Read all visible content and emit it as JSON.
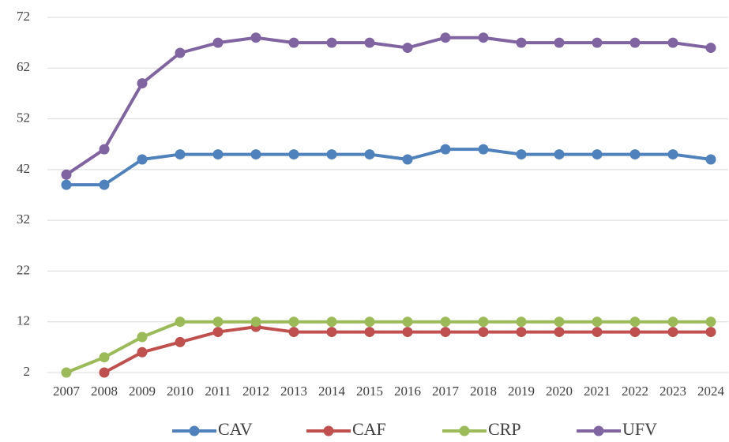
{
  "chart_data": {
    "type": "line",
    "categories": [
      "2007",
      "2008",
      "2009",
      "2010",
      "2011",
      "2012",
      "2013",
      "2014",
      "2015",
      "2016",
      "2017",
      "2018",
      "2019",
      "2020",
      "2021",
      "2022",
      "2023",
      "2024"
    ],
    "series": [
      {
        "name": "CAV",
        "color": "#4f81bd",
        "values": [
          39,
          39,
          44,
          45,
          45,
          45,
          45,
          45,
          45,
          44,
          46,
          46,
          45,
          45,
          45,
          45,
          45,
          44
        ]
      },
      {
        "name": "CAF",
        "color": "#c0504d",
        "values": [
          null,
          2,
          6,
          8,
          10,
          11,
          10,
          10,
          10,
          10,
          10,
          10,
          10,
          10,
          10,
          10,
          10,
          10
        ]
      },
      {
        "name": "CRP",
        "color": "#9bbb59",
        "values": [
          2,
          5,
          9,
          12,
          12,
          12,
          12,
          12,
          12,
          12,
          12,
          12,
          12,
          12,
          12,
          12,
          12,
          12
        ]
      },
      {
        "name": "UFV",
        "color": "#8064a2",
        "values": [
          41,
          46,
          59,
          65,
          67,
          68,
          67,
          67,
          67,
          66,
          68,
          68,
          67,
          67,
          67,
          67,
          67,
          66
        ]
      }
    ],
    "ylim": [
      2,
      72
    ],
    "yticks": [
      2,
      12,
      22,
      32,
      42,
      52,
      62,
      72
    ],
    "grid": true,
    "legend": "bottom"
  }
}
